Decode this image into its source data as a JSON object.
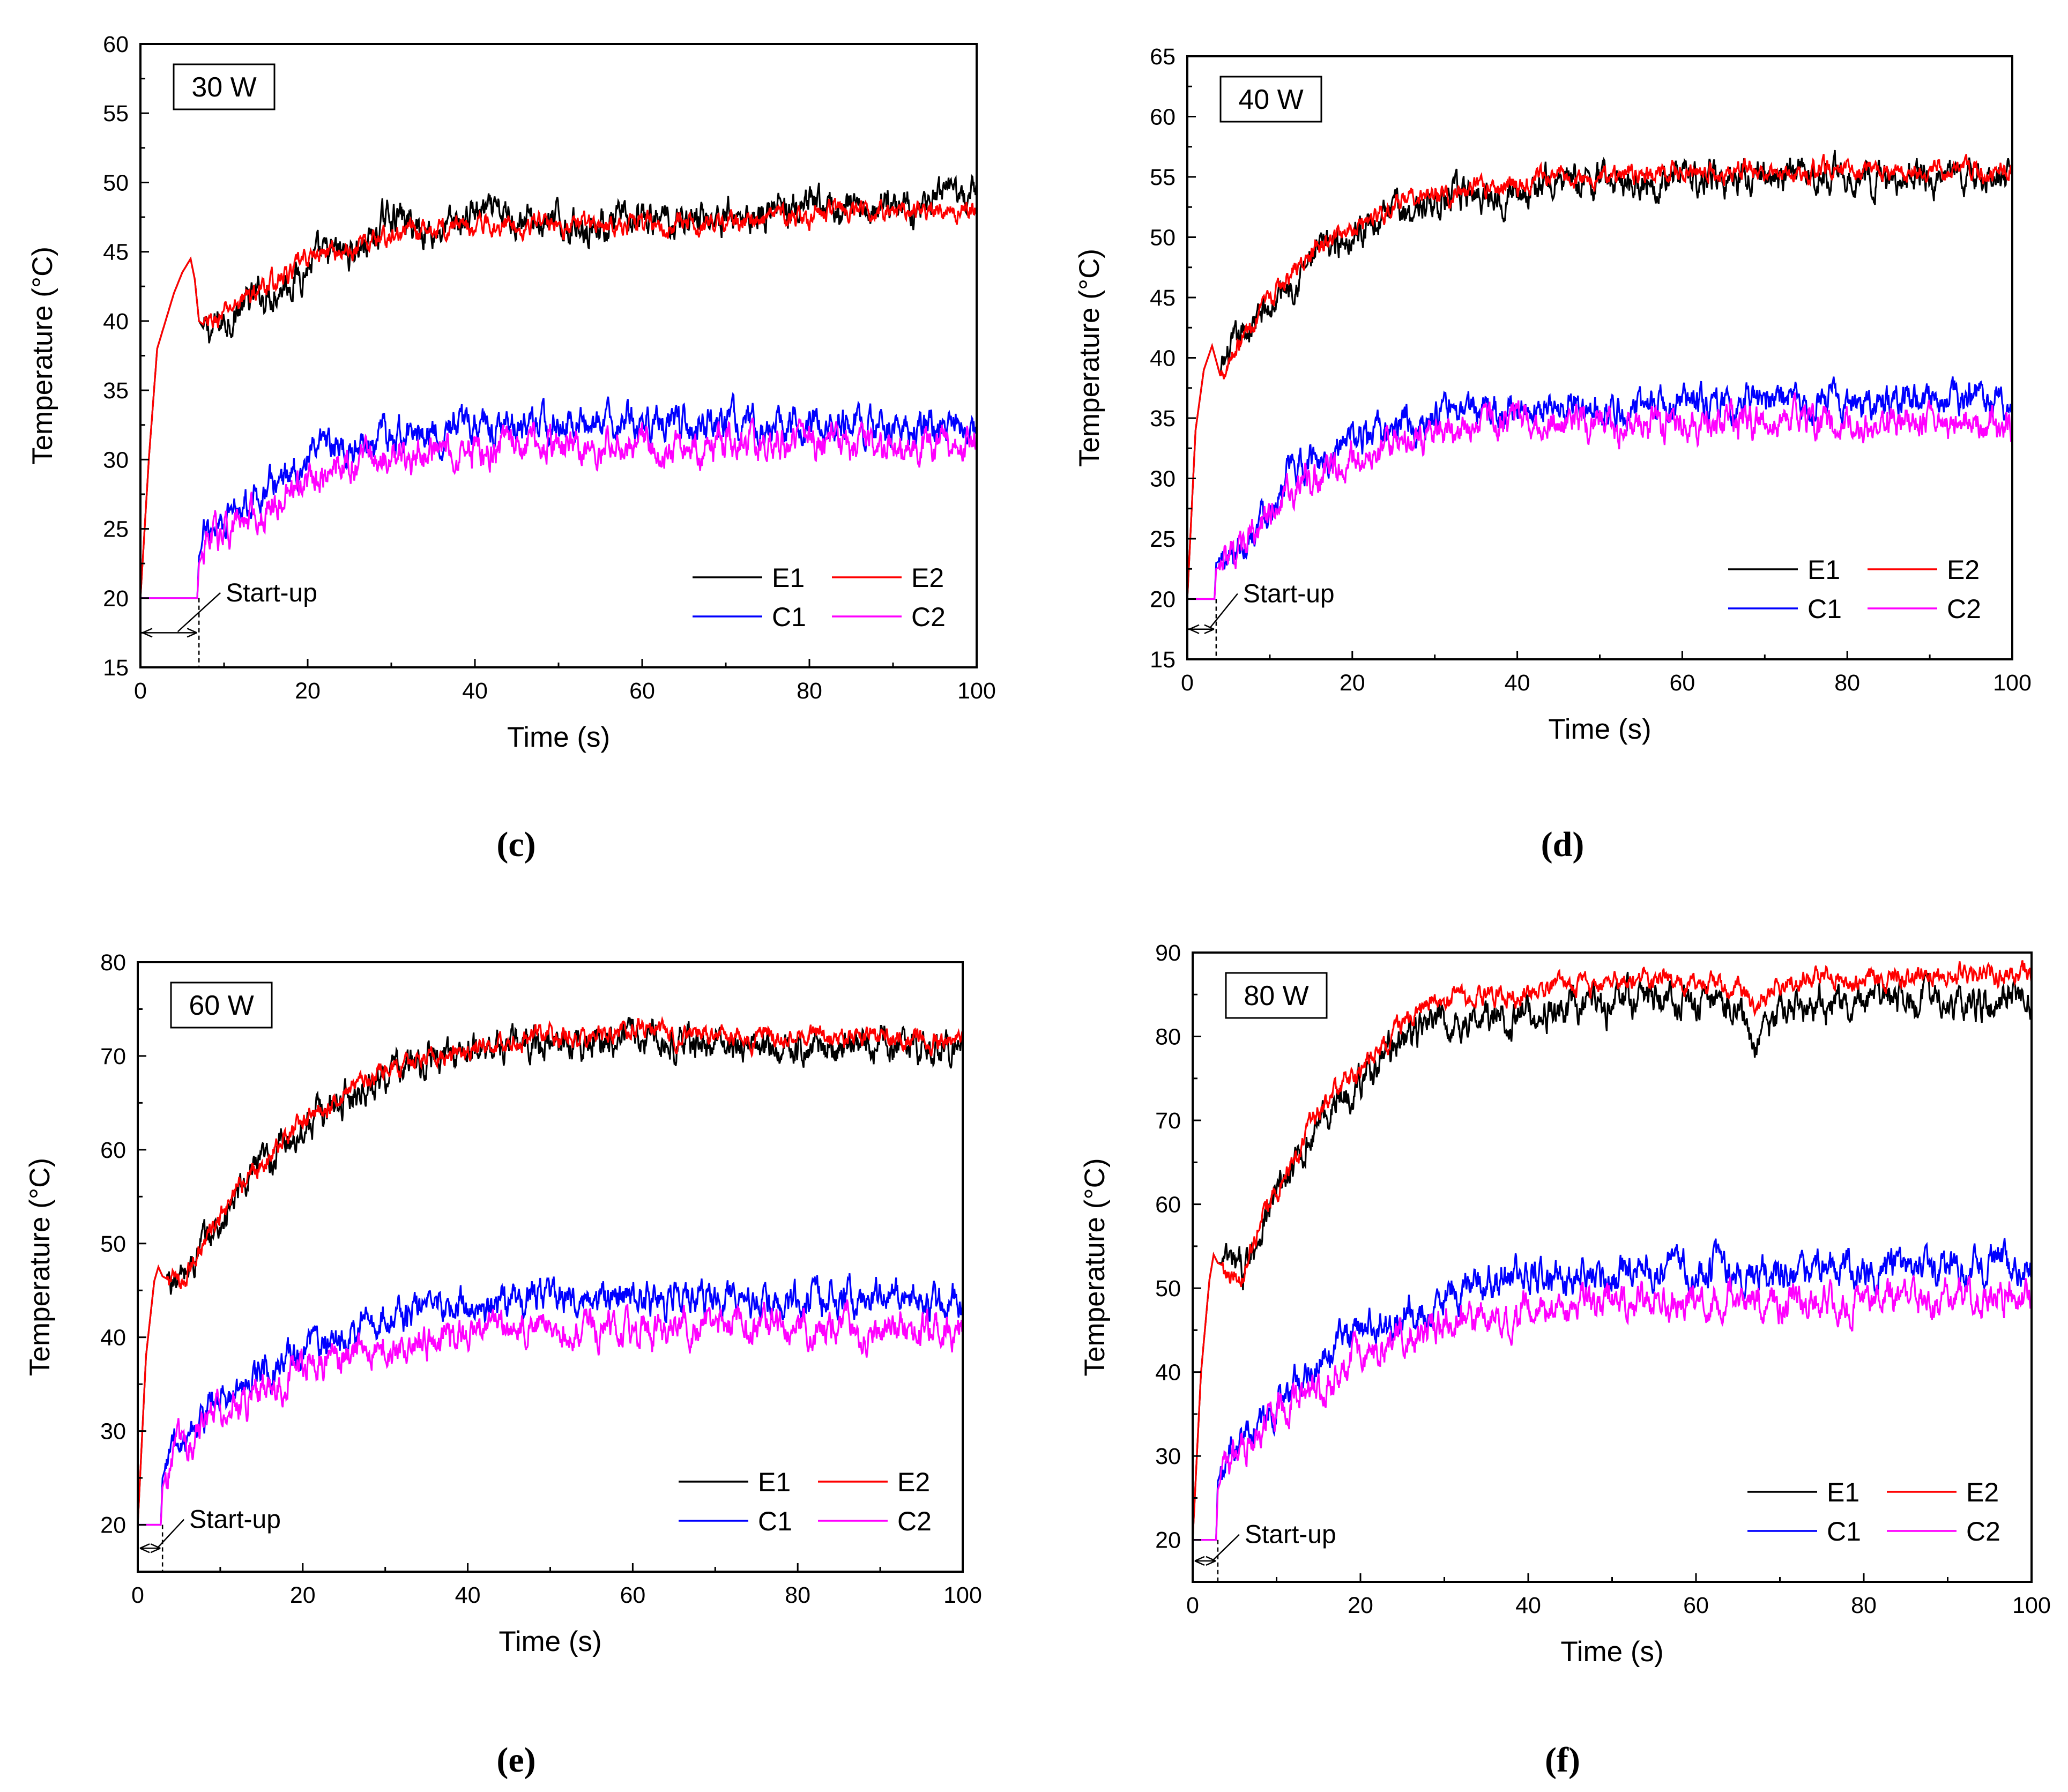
{
  "figure": {
    "captions": [
      "(c)",
      "(d)",
      "(e)",
      "(f)"
    ]
  },
  "colors": {
    "E1": "#000000",
    "E2": "#ff0000",
    "C1": "#0000ff",
    "C2": "#ff00ff"
  },
  "chart_data": [
    {
      "type": "line",
      "panel": "(c)",
      "title": "30 W",
      "xlabel": "Time (s)",
      "ylabel": "Temperature (°C)",
      "xlim": [
        0,
        100
      ],
      "ylim": [
        15,
        60
      ],
      "xticks": [
        0,
        20,
        40,
        60,
        80,
        100
      ],
      "yticks": [
        15,
        20,
        25,
        30,
        35,
        40,
        45,
        50,
        55,
        60
      ],
      "legend": [
        "E1",
        "E2",
        "C1",
        "C2"
      ],
      "annotation": "Start-up",
      "startup_time": 7,
      "series": [
        {
          "name": "E1",
          "x": [
            0,
            1,
            2,
            3,
            4,
            5,
            6,
            6.5,
            7,
            8,
            10,
            12,
            15,
            18,
            20,
            22,
            25,
            28,
            30,
            32,
            35,
            38,
            40,
            42,
            45,
            48,
            50,
            55,
            60,
            65,
            70,
            75,
            80,
            85,
            90,
            95,
            100
          ],
          "y": [
            20,
            30,
            38,
            40,
            42,
            43.5,
            44.5,
            43,
            40,
            39,
            40,
            41,
            42,
            43,
            44,
            44.5,
            45,
            46,
            48,
            47,
            46.5,
            47,
            48,
            47.5,
            47.5,
            47,
            47,
            47,
            47,
            47.5,
            47.5,
            48,
            48,
            48,
            48.5,
            48.5,
            49
          ]
        },
        {
          "name": "E2",
          "x": [
            0,
            1,
            2,
            3,
            4,
            5,
            6,
            6.5,
            7,
            8,
            10,
            12,
            15,
            18,
            20,
            22,
            25,
            28,
            30,
            32,
            35,
            38,
            40,
            42,
            45,
            48,
            50,
            55,
            60,
            65,
            70,
            75,
            80,
            85,
            90,
            95,
            100
          ],
          "y": [
            20,
            30,
            38,
            40,
            42,
            43.5,
            44.5,
            43,
            40,
            39.5,
            40.5,
            41.5,
            42.5,
            43.5,
            44.5,
            45,
            45,
            46,
            46,
            46.5,
            46.5,
            47,
            47,
            47,
            47,
            47,
            47,
            47,
            47,
            47,
            47,
            47.5,
            47.5,
            48,
            48,
            48,
            48
          ]
        },
        {
          "name": "C1",
          "x": [
            0,
            6.8,
            7,
            8,
            10,
            12,
            15,
            18,
            20,
            25,
            30,
            35,
            40,
            45,
            50,
            55,
            60,
            65,
            70,
            75,
            80,
            85,
            90,
            95,
            100
          ],
          "y": [
            20,
            20,
            23,
            25,
            26,
            27,
            28,
            29,
            30,
            31,
            31.5,
            32,
            32.5,
            32.5,
            32.5,
            32.5,
            32.5,
            32.5,
            32.5,
            32.5,
            32.5,
            32.5,
            32.5,
            32,
            32
          ]
        },
        {
          "name": "C2",
          "x": [
            0,
            6.8,
            7,
            8,
            10,
            12,
            15,
            18,
            20,
            25,
            30,
            35,
            40,
            45,
            50,
            55,
            60,
            65,
            70,
            75,
            80,
            85,
            90,
            95,
            100
          ],
          "y": [
            20,
            20,
            22.5,
            24,
            25,
            25.5,
            26.5,
            27.5,
            28.5,
            29.5,
            30,
            30.5,
            30.5,
            31,
            31,
            31,
            31,
            31,
            31,
            31,
            31,
            31,
            31,
            31,
            31
          ]
        }
      ]
    },
    {
      "type": "line",
      "panel": "(d)",
      "title": "40 W",
      "xlabel": "Time (s)",
      "ylabel": "Temperature (°C)",
      "xlim": [
        0,
        100
      ],
      "ylim": [
        15,
        65
      ],
      "xticks": [
        0,
        20,
        40,
        60,
        80,
        100
      ],
      "yticks": [
        15,
        20,
        25,
        30,
        35,
        40,
        45,
        50,
        55,
        60,
        65
      ],
      "legend": [
        "E1",
        "E2",
        "C1",
        "C2"
      ],
      "annotation": "Start-up",
      "startup_time": 3.5,
      "series": [
        {
          "name": "E1",
          "x": [
            0,
            1,
            2,
            3,
            4,
            5,
            6,
            8,
            10,
            12,
            15,
            18,
            20,
            25,
            30,
            35,
            40,
            45,
            50,
            55,
            60,
            65,
            70,
            75,
            80,
            85,
            90,
            95,
            100
          ],
          "y": [
            20,
            34,
            39,
            41,
            38.5,
            40,
            41,
            43,
            44,
            46,
            48,
            49.5,
            50.5,
            52,
            53,
            53.5,
            54,
            54.5,
            54.5,
            54.8,
            55,
            55,
            55,
            55,
            55,
            55,
            55,
            55,
            55
          ]
        },
        {
          "name": "E2",
          "x": [
            0,
            1,
            2,
            3,
            4,
            5,
            6,
            8,
            10,
            12,
            15,
            18,
            20,
            25,
            30,
            35,
            40,
            45,
            50,
            55,
            60,
            65,
            70,
            75,
            80,
            85,
            90,
            95,
            100
          ],
          "y": [
            20,
            34,
            39,
            41,
            38.5,
            40,
            41,
            43,
            44.5,
            46.5,
            48.5,
            50,
            51,
            52.5,
            53.5,
            54,
            54.5,
            55,
            55,
            55.2,
            55.3,
            55.4,
            55.5,
            55.5,
            55.5,
            55.5,
            55.5,
            55.5,
            55.5
          ]
        },
        {
          "name": "C1",
          "x": [
            0,
            3.3,
            3.5,
            5,
            7,
            10,
            12,
            15,
            18,
            20,
            25,
            30,
            35,
            40,
            45,
            50,
            55,
            60,
            65,
            70,
            75,
            80,
            85,
            90,
            95,
            100
          ],
          "y": [
            20,
            20,
            23,
            23.5,
            25,
            28,
            30,
            31.5,
            32.5,
            33,
            34,
            35,
            35.5,
            35.8,
            36,
            36,
            36,
            36,
            36,
            36,
            36,
            36.3,
            36.3,
            36.5,
            36.5,
            36.5
          ]
        },
        {
          "name": "C2",
          "x": [
            0,
            3.3,
            3.5,
            5,
            7,
            10,
            12,
            15,
            18,
            20,
            25,
            30,
            35,
            40,
            45,
            50,
            55,
            60,
            65,
            70,
            75,
            80,
            85,
            90,
            95,
            100
          ],
          "y": [
            20,
            20,
            22.5,
            23,
            24,
            27,
            28.5,
            30,
            31,
            31.8,
            33,
            33.8,
            34.2,
            34.5,
            34.5,
            34.5,
            34.5,
            34.5,
            34.5,
            34.5,
            34.5,
            34.5,
            34.5,
            34.5,
            34.5,
            34.5
          ]
        }
      ]
    },
    {
      "type": "line",
      "panel": "(e)",
      "title": "60 W",
      "xlabel": "Time (s)",
      "ylabel": "Temperature (°C)",
      "xlim": [
        0,
        100
      ],
      "ylim": [
        15,
        80
      ],
      "xticks": [
        0,
        20,
        40,
        60,
        80,
        100
      ],
      "yticks": [
        20,
        30,
        40,
        50,
        60,
        70,
        80
      ],
      "legend": [
        "E1",
        "E2",
        "C1",
        "C2"
      ],
      "annotation": "Start-up",
      "startup_time": 3,
      "series": [
        {
          "name": "E1",
          "x": [
            0,
            1,
            2,
            2.5,
            3,
            4,
            5,
            6,
            8,
            10,
            12,
            15,
            18,
            20,
            25,
            30,
            35,
            40,
            45,
            50,
            55,
            60,
            65,
            70,
            75,
            80,
            85,
            90,
            95,
            100
          ],
          "y": [
            20,
            38,
            46,
            47.5,
            46.5,
            46,
            46,
            47,
            50,
            52,
            55,
            58,
            61,
            62.5,
            65.5,
            68,
            69.5,
            70.5,
            71,
            71.5,
            71.5,
            72.5,
            71.5,
            71,
            71,
            71,
            71,
            71,
            71,
            71
          ]
        },
        {
          "name": "E2",
          "x": [
            0,
            1,
            2,
            2.5,
            3,
            4,
            5,
            6,
            8,
            10,
            12,
            15,
            18,
            20,
            25,
            30,
            35,
            40,
            45,
            50,
            55,
            60,
            65,
            70,
            75,
            80,
            85,
            90,
            95,
            100
          ],
          "y": [
            20,
            38,
            46,
            47.5,
            46.5,
            46,
            46,
            47,
            50,
            52.5,
            55.5,
            58.5,
            61.5,
            63,
            66,
            68.5,
            70,
            71,
            71.5,
            72,
            72,
            73,
            72,
            72,
            72,
            72,
            71.8,
            71.8,
            71.8,
            71.8
          ]
        },
        {
          "name": "C1",
          "x": [
            0,
            2.8,
            3,
            4,
            5,
            7,
            10,
            12,
            15,
            18,
            20,
            25,
            30,
            35,
            40,
            45,
            50,
            55,
            60,
            65,
            70,
            75,
            80,
            85,
            90,
            95,
            100
          ],
          "y": [
            20,
            20,
            25,
            28,
            29,
            31,
            33,
            34.5,
            36,
            37.5,
            38.5,
            40.5,
            42,
            43,
            43.5,
            44,
            44,
            44,
            44,
            44,
            44,
            44,
            44,
            44,
            44,
            44,
            44
          ]
        },
        {
          "name": "C2",
          "x": [
            0,
            2.8,
            3,
            4,
            5,
            7,
            10,
            12,
            15,
            18,
            20,
            25,
            30,
            35,
            40,
            45,
            50,
            55,
            60,
            65,
            70,
            75,
            80,
            85,
            90,
            95,
            100
          ],
          "y": [
            20,
            20,
            24,
            27,
            28,
            30,
            32,
            33,
            34.5,
            35.5,
            36.5,
            38,
            39,
            39.5,
            40,
            40.5,
            41,
            41,
            41,
            41,
            41,
            41,
            41,
            41,
            41,
            41,
            41
          ]
        }
      ]
    },
    {
      "type": "line",
      "panel": "(f)",
      "title": "80 W",
      "xlabel": "Time (s)",
      "ylabel": "Temperature (°C)",
      "xlim": [
        0,
        100
      ],
      "ylim": [
        15,
        90
      ],
      "xticks": [
        0,
        20,
        40,
        60,
        80,
        100
      ],
      "yticks": [
        20,
        30,
        40,
        50,
        60,
        70,
        80,
        90
      ],
      "legend": [
        "E1",
        "E2",
        "C1",
        "C2"
      ],
      "annotation": "Start-up",
      "startup_time": 3,
      "series": [
        {
          "name": "E1",
          "x": [
            0,
            1,
            2,
            2.5,
            3,
            4,
            5,
            6,
            8,
            10,
            12,
            15,
            18,
            20,
            22,
            25,
            28,
            30,
            35,
            40,
            45,
            50,
            55,
            60,
            65,
            67,
            70,
            75,
            80,
            85,
            90,
            95,
            100
          ],
          "y": [
            20,
            40,
            51,
            54,
            53,
            53,
            52,
            52,
            57,
            61,
            64,
            70,
            73,
            75,
            77,
            80,
            81,
            81.5,
            82,
            82.5,
            83,
            84,
            85,
            83.5,
            84,
            78,
            83.5,
            84,
            83.5,
            84.5,
            84.5,
            84,
            84.5
          ]
        },
        {
          "name": "E2",
          "x": [
            0,
            1,
            2,
            2.5,
            3,
            4,
            5,
            6,
            8,
            10,
            12,
            15,
            18,
            20,
            22,
            25,
            28,
            30,
            35,
            40,
            45,
            50,
            55,
            60,
            65,
            67,
            70,
            75,
            80,
            85,
            90,
            95,
            100
          ],
          "y": [
            20,
            40,
            51,
            54,
            53,
            52.5,
            52,
            52,
            57,
            61.5,
            65,
            71,
            74,
            76,
            78,
            81.5,
            83.5,
            84.5,
            85,
            85.5,
            86,
            86.5,
            87.5,
            86,
            86.5,
            84,
            86,
            87,
            87,
            87,
            87.5,
            87.5,
            87.5
          ]
        },
        {
          "name": "C1",
          "x": [
            0,
            2.8,
            3,
            4,
            5,
            7,
            10,
            12,
            15,
            18,
            20,
            25,
            30,
            35,
            40,
            45,
            50,
            55,
            60,
            65,
            70,
            75,
            80,
            85,
            90,
            95,
            100
          ],
          "y": [
            20,
            20,
            27,
            30,
            31,
            33,
            36,
            38,
            41.5,
            44,
            45,
            46.5,
            49,
            51,
            51.5,
            51,
            51.5,
            53,
            52,
            52,
            51.5,
            52,
            52,
            52.5,
            52.5,
            53,
            51.5
          ]
        },
        {
          "name": "C2",
          "x": [
            0,
            2.8,
            3,
            4,
            5,
            7,
            10,
            12,
            15,
            18,
            20,
            25,
            30,
            35,
            40,
            45,
            50,
            55,
            60,
            65,
            70,
            75,
            80,
            85,
            90,
            95,
            100
          ],
          "y": [
            20,
            20,
            26,
            29,
            30,
            32,
            34.5,
            36,
            38.5,
            40.5,
            42,
            44,
            45.5,
            47,
            47.5,
            48,
            48,
            48.5,
            48.5,
            48.5,
            48,
            48.5,
            48.5,
            48.5,
            48.5,
            49,
            49
          ]
        }
      ]
    }
  ]
}
